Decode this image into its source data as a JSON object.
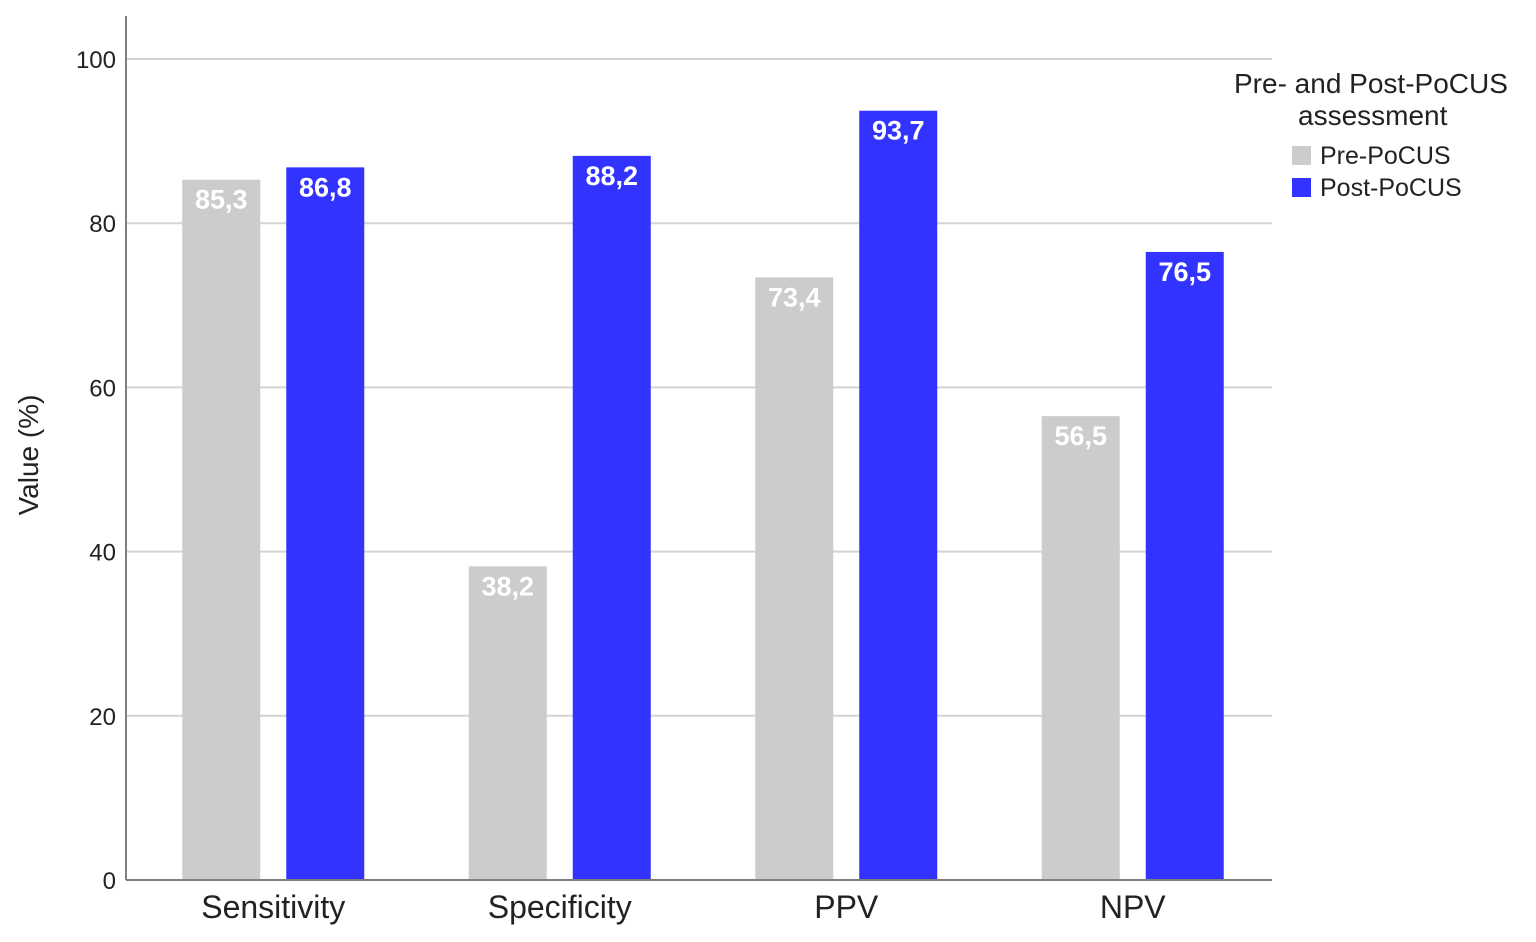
{
  "chart_data": {
    "type": "bar",
    "categories": [
      "Sensitivity",
      "Specificity",
      "PPV",
      "NPV"
    ],
    "series": [
      {
        "name": "Pre-PoCUS",
        "color": "#cccccc",
        "values": [
          85.3,
          38.2,
          73.4,
          56.5
        ],
        "labels": [
          "85,3",
          "38,2",
          "73,4",
          "56,5"
        ]
      },
      {
        "name": "Post-PoCUS",
        "color": "#3333ff",
        "values": [
          86.8,
          88.2,
          93.7,
          76.5
        ],
        "labels": [
          "86,8",
          "88,2",
          "93,7",
          "76,5"
        ]
      }
    ],
    "title": "",
    "xlabel": "",
    "ylabel": "Value (%)",
    "ylim": [
      0,
      100
    ],
    "yticks": [
      0,
      20,
      40,
      60,
      80,
      100
    ],
    "grid": true,
    "legend": {
      "title_lines": [
        "Pre- and Post-PoCUS",
        "assessment"
      ],
      "placement": "right"
    }
  }
}
